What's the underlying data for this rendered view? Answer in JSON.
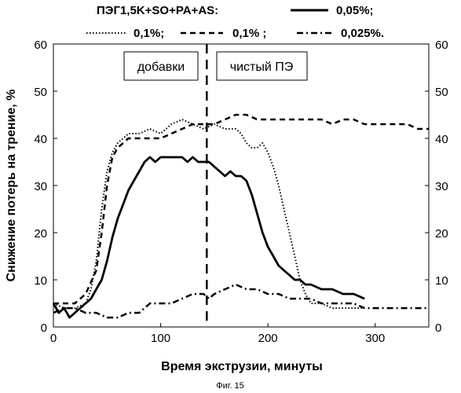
{
  "figure_caption": "Фиг. 15",
  "chart_data": {
    "type": "line",
    "xlabel": "Время экструзии, минуты",
    "ylabel": "Снижение потерь на трение, %",
    "xlim": [
      0,
      350
    ],
    "ylim": [
      0,
      60
    ],
    "x_ticks": [
      "0",
      "100",
      "200",
      "300"
    ],
    "y_ticks_left": [
      "0",
      "10",
      "20",
      "30",
      "40",
      "50",
      "60"
    ],
    "y_ticks_right": [
      "0",
      "10",
      "20",
      "30",
      "40",
      "50",
      "60"
    ],
    "grid": false,
    "legend": {
      "placement": "top",
      "prefix": "ПЭГ1,5K+SO+PA+AS:",
      "entries": [
        "0,05%;",
        "0,1%;",
        "0,1% ;",
        "0,025%."
      ]
    },
    "annotations": [
      {
        "text": "добавки",
        "region": "left"
      },
      {
        "text": "чистый ПЭ",
        "region": "right"
      }
    ],
    "switch_x": 143,
    "series": [
      {
        "name": "0,05%;",
        "style": "solid",
        "x": [
          0,
          5,
          10,
          15,
          20,
          25,
          30,
          35,
          40,
          45,
          50,
          55,
          60,
          65,
          70,
          75,
          80,
          85,
          90,
          95,
          100,
          105,
          110,
          115,
          120,
          125,
          130,
          135,
          140,
          145,
          150,
          155,
          160,
          165,
          170,
          175,
          180,
          185,
          190,
          195,
          200,
          205,
          210,
          215,
          220,
          225,
          230,
          235,
          240,
          250,
          260,
          270,
          280,
          290
        ],
        "y": [
          5,
          3,
          4,
          2,
          3,
          4,
          5,
          6,
          8,
          10,
          14,
          19,
          23,
          26,
          29,
          31,
          33,
          35,
          36,
          35,
          36,
          36,
          36,
          36,
          36,
          35,
          36,
          35,
          35,
          35,
          34,
          33,
          32,
          33,
          32,
          32,
          31,
          28,
          24,
          20,
          17,
          15,
          13,
          12,
          11,
          10,
          10,
          9,
          9,
          8,
          8,
          7,
          7,
          6
        ]
      },
      {
        "name": "0,1%;",
        "style": "dotted",
        "x": [
          0,
          10,
          20,
          30,
          35,
          40,
          45,
          50,
          55,
          60,
          70,
          80,
          90,
          100,
          110,
          120,
          130,
          140,
          150,
          160,
          170,
          175,
          180,
          185,
          190,
          195,
          200,
          205,
          210,
          215,
          220,
          225,
          230,
          235,
          240,
          250,
          260,
          270,
          280,
          290
        ],
        "y": [
          5,
          4,
          4,
          5,
          8,
          14,
          25,
          33,
          37,
          39,
          41,
          41,
          42,
          41,
          43,
          44,
          43,
          42,
          43,
          42,
          42,
          41,
          39,
          38,
          38,
          39,
          37,
          34,
          30,
          25,
          20,
          15,
          10,
          7,
          5,
          5,
          4,
          4,
          4,
          4
        ]
      },
      {
        "name": "0,1% ;",
        "style": "dashed",
        "x": [
          0,
          10,
          20,
          30,
          40,
          45,
          50,
          55,
          60,
          70,
          80,
          90,
          100,
          110,
          120,
          130,
          140,
          150,
          160,
          170,
          180,
          190,
          200,
          210,
          220,
          230,
          240,
          250,
          260,
          270,
          280,
          290,
          300,
          310,
          320,
          330,
          340,
          350
        ],
        "y": [
          5,
          5,
          5,
          7,
          12,
          20,
          30,
          36,
          38,
          40,
          40,
          40,
          40,
          41,
          42,
          43,
          43,
          43,
          44,
          45,
          45,
          44,
          44,
          44,
          44,
          44,
          44,
          44,
          43,
          44,
          44,
          43,
          43,
          43,
          43,
          43,
          42,
          42
        ]
      },
      {
        "name": "0,025%.",
        "style": "dashdot",
        "x": [
          0,
          10,
          20,
          30,
          40,
          50,
          60,
          70,
          80,
          90,
          100,
          110,
          120,
          130,
          140,
          145,
          150,
          160,
          170,
          180,
          190,
          200,
          210,
          220,
          230,
          240,
          250,
          260,
          270,
          280,
          290,
          300,
          310,
          320,
          330,
          340,
          350
        ],
        "y": [
          3,
          4,
          4,
          3,
          3,
          2,
          2,
          3,
          3,
          5,
          5,
          5,
          6,
          7,
          7,
          6,
          7,
          8,
          9,
          8,
          8,
          7,
          7,
          6,
          6,
          6,
          5,
          5,
          5,
          5,
          4,
          4,
          4,
          4,
          4,
          4,
          4
        ]
      }
    ]
  }
}
